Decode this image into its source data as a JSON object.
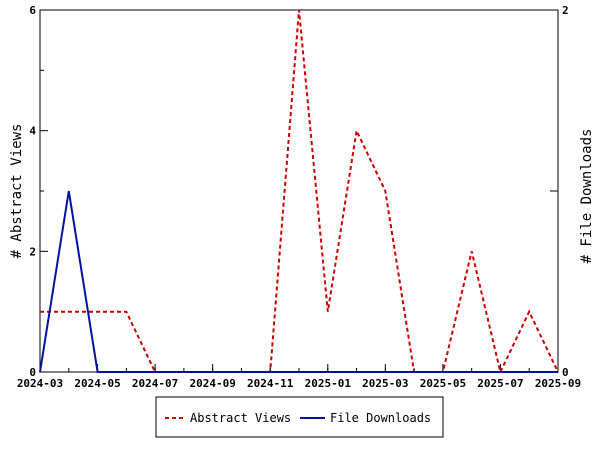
{
  "chart_data": {
    "type": "line",
    "x_type": "date",
    "x": [
      "2024-03",
      "2024-04",
      "2024-05",
      "2024-06",
      "2024-07",
      "2024-08",
      "2024-09",
      "2024-10",
      "2024-11",
      "2024-12",
      "2025-01",
      "2025-02",
      "2025-03",
      "2025-04",
      "2025-05",
      "2025-06",
      "2025-07",
      "2025-08",
      "2025-09"
    ],
    "xlim": [
      "2024-03",
      "2025-09"
    ],
    "x_ticks": [
      "2024-03",
      "2024-05",
      "2024-07",
      "2024-09",
      "2024-11",
      "2025-01",
      "2025-03",
      "2025-05",
      "2025-07",
      "2025-09"
    ],
    "ylabel_left": "# Abstract Views",
    "ylabel_right": "# File Downloads",
    "ylim_left": [
      0,
      6
    ],
    "yticks_left": [
      "0",
      "2",
      "4",
      "6"
    ],
    "ylim_right": [
      0,
      2
    ],
    "yticks_right": [
      "0",
      "2"
    ],
    "grid": false,
    "legend_position": "bottom-center",
    "series": [
      {
        "name": "Abstract Views",
        "axis": "left",
        "color": "#cc0000",
        "style": "dashed",
        "values": [
          1,
          1,
          1,
          1,
          0,
          0,
          0,
          0,
          0,
          6,
          1,
          4,
          3,
          0,
          0,
          2,
          0,
          1,
          0
        ]
      },
      {
        "name": "File Downloads",
        "axis": "right",
        "color": "#00139d",
        "style": "solid",
        "values": [
          0,
          1,
          0,
          0,
          0,
          0,
          0,
          0,
          0,
          0,
          0,
          0,
          0,
          0,
          0,
          0,
          0,
          0,
          0
        ]
      }
    ]
  }
}
